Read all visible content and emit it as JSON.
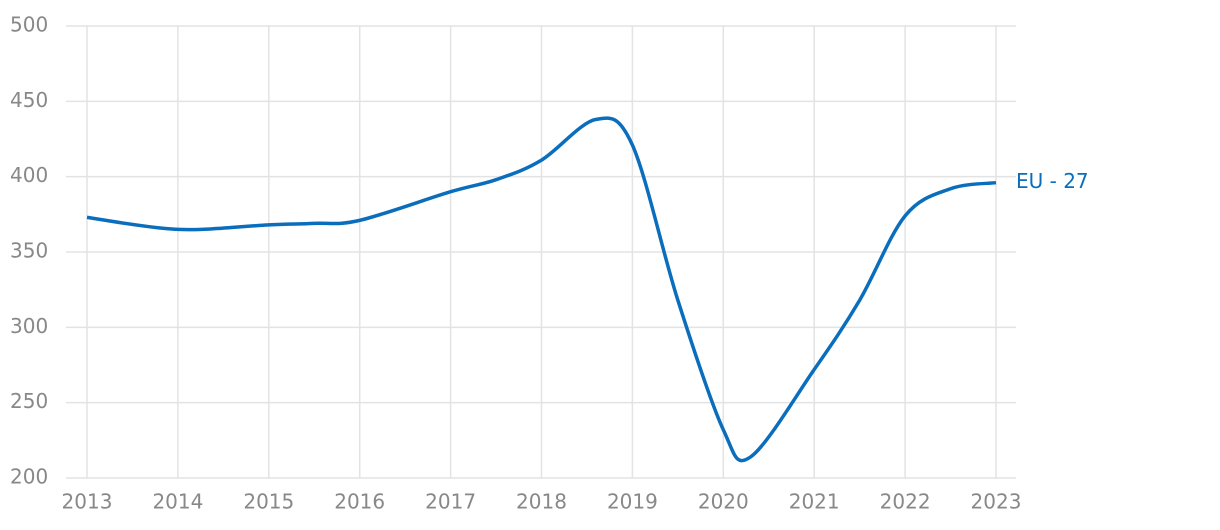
{
  "chart_data": {
    "type": "line",
    "x": [
      2013,
      2014,
      2015,
      2015.5,
      2016,
      2017,
      2017.5,
      2018,
      2018.6,
      2019,
      2019.5,
      2020,
      2020.3,
      2021,
      2021.5,
      2022,
      2022.5,
      2023
    ],
    "series": [
      {
        "name": "EU - 27",
        "color": "#0a6ebd",
        "values": [
          373,
          365,
          368,
          369,
          371,
          390,
          398,
          411,
          438,
          421,
          318,
          232,
          214,
          272,
          318,
          374,
          392,
          396
        ]
      }
    ],
    "xlim": [
      2013,
      2023
    ],
    "xticks": [
      2013,
      2014,
      2015,
      2016,
      2017,
      2018,
      2019,
      2020,
      2021,
      2022,
      2023
    ],
    "ylim": [
      200,
      500
    ],
    "yticks": [
      200,
      250,
      300,
      350,
      400,
      450,
      500
    ],
    "grid": true
  }
}
